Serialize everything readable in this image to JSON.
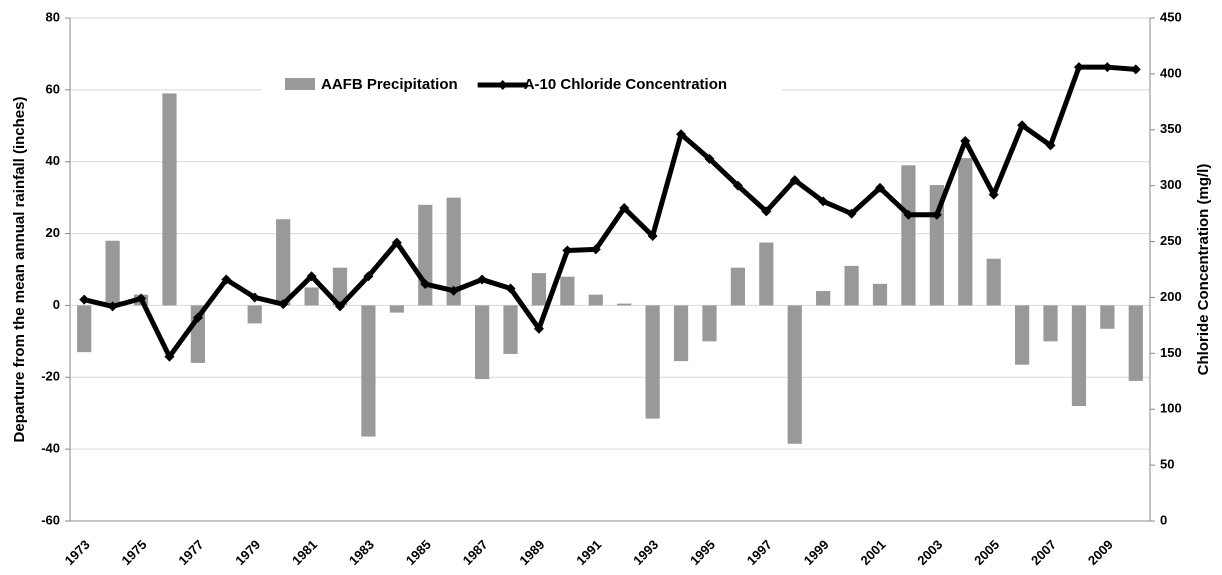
{
  "chart_data": {
    "type": "bar",
    "categories": [
      "1973",
      null,
      "1975",
      null,
      "1977",
      null,
      "1979",
      null,
      "1981",
      null,
      "1983",
      null,
      "1985",
      null,
      "1987",
      null,
      "1989",
      null,
      "1991",
      null,
      "1993",
      null,
      "1995",
      null,
      "1997",
      null,
      "1999",
      null,
      "2001",
      null,
      "2003",
      null,
      "2005",
      null,
      "2007",
      null,
      "2009",
      null
    ],
    "series": [
      {
        "name": "AAFB Precipitation",
        "type": "bar",
        "color": "#999999",
        "values": [
          -13,
          18,
          3,
          59,
          -16,
          0,
          -5,
          24,
          5,
          10.5,
          -36.5,
          -2,
          28,
          30,
          -20.5,
          -13.5,
          9,
          8,
          3,
          0.5,
          -31.5,
          -15.5,
          -10,
          10.5,
          17.5,
          -38.5,
          4,
          11,
          6,
          39,
          33.5,
          41,
          13,
          -16.5,
          -10,
          -28,
          -6.5,
          -21
        ]
      },
      {
        "name": "A-10 Chloride Concentration",
        "type": "line",
        "color": "#000000",
        "axis": "y2",
        "values": [
          198,
          192,
          199,
          147,
          182,
          216,
          200,
          194,
          219,
          192,
          219,
          249,
          212,
          206,
          216,
          208,
          172,
          242,
          243,
          280,
          255,
          346,
          324,
          300,
          277,
          305,
          286,
          275,
          298,
          274,
          274,
          340,
          292,
          354,
          336,
          406,
          406,
          404
        ]
      }
    ],
    "ylabel": "Departure from the mean annual rainfall (inches)",
    "y2label": "Chloride Concentration (mg/l)",
    "ylim": [
      -60,
      80
    ],
    "yticks": [
      -60,
      -40,
      -20,
      0,
      20,
      40,
      60,
      80
    ],
    "y2lim": [
      0,
      450
    ],
    "y2ticks": [
      0,
      50,
      100,
      150,
      200,
      250,
      300,
      350,
      400,
      450
    ],
    "grid": true,
    "legend": "top"
  }
}
